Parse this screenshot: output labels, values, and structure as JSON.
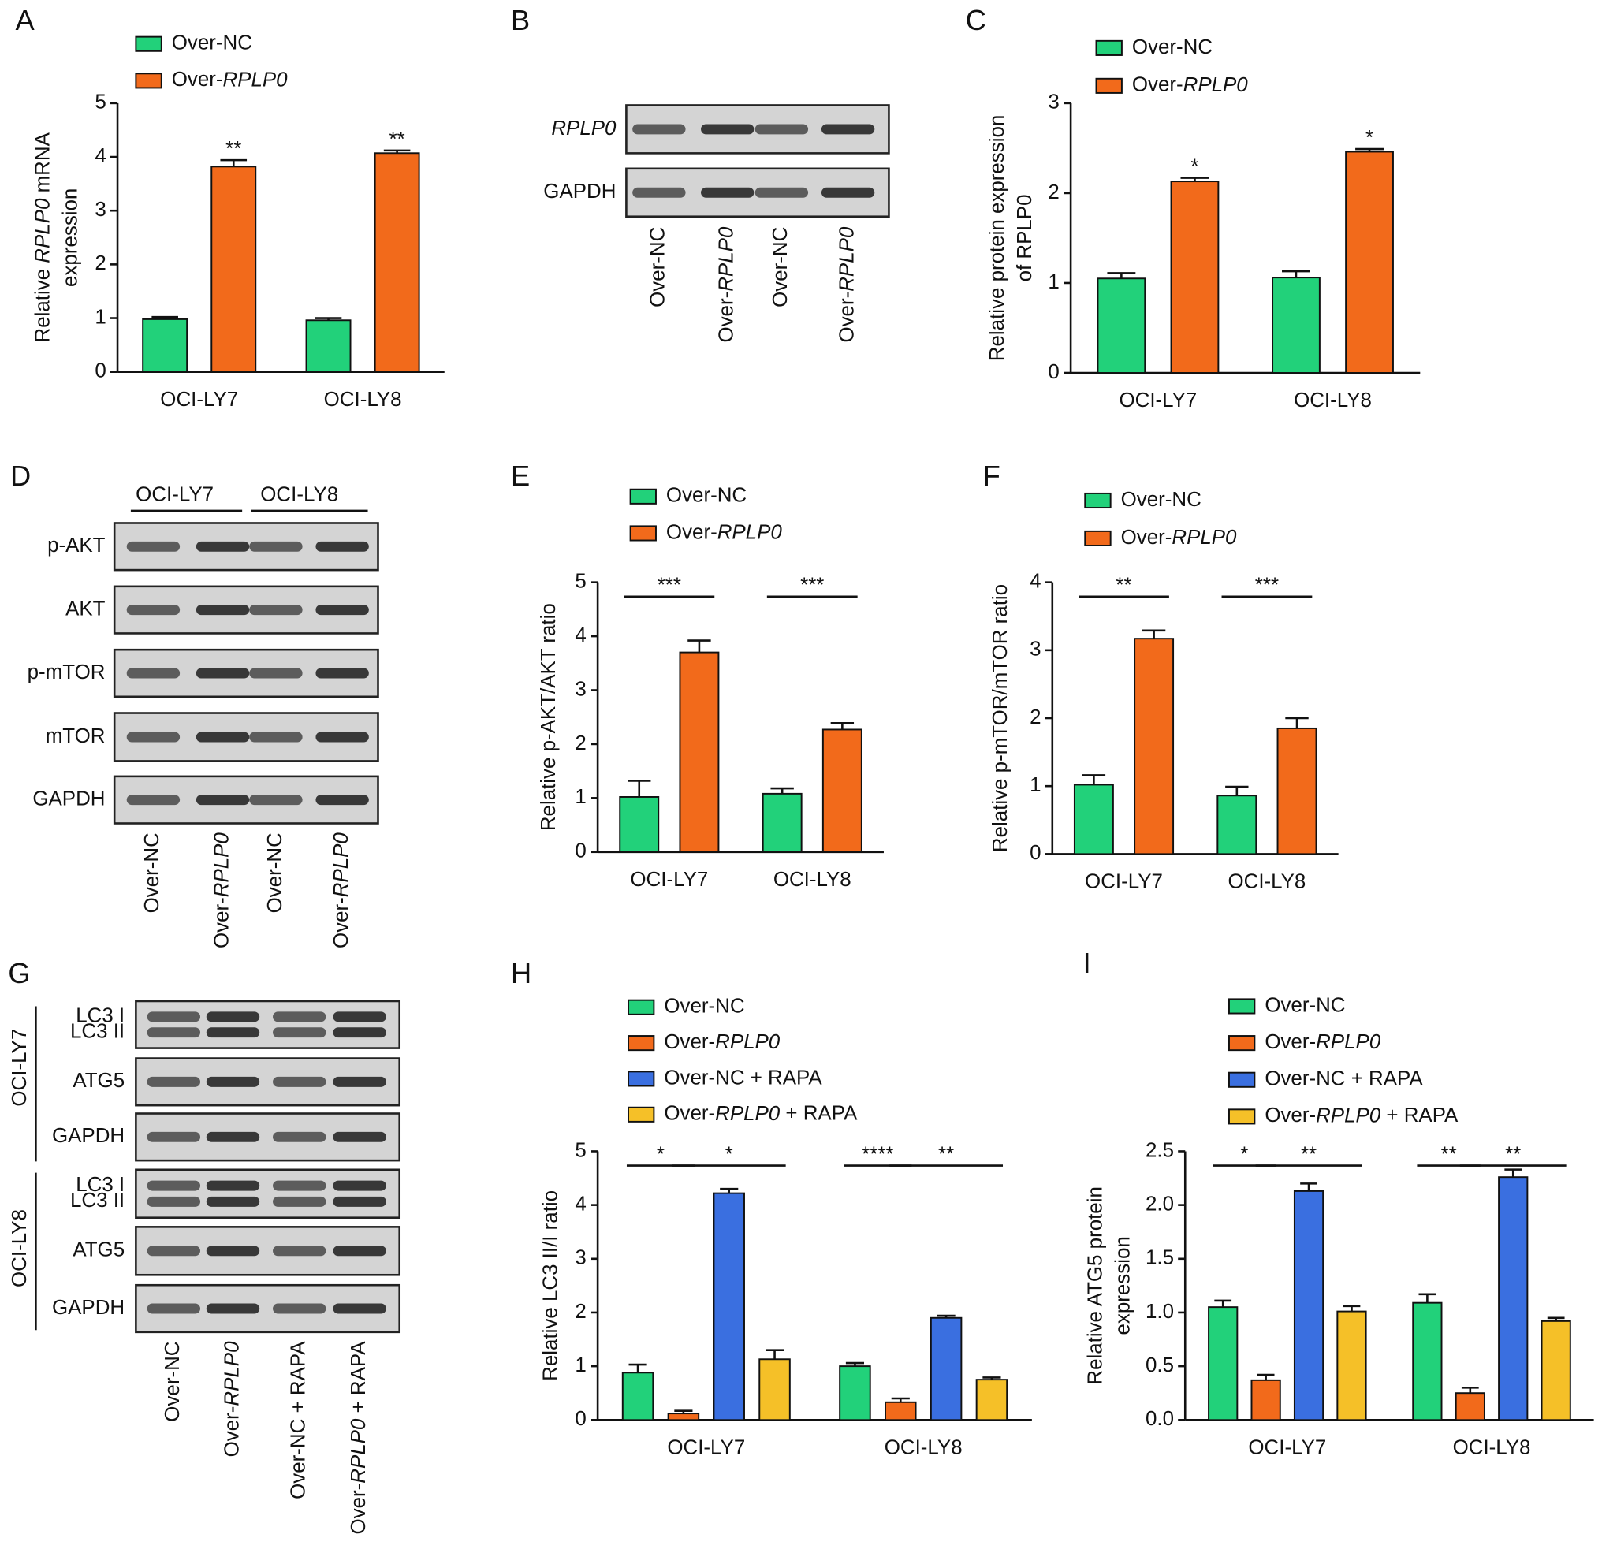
{
  "chart_data": [
    {
      "panel": "A",
      "type": "bar",
      "ylabel": [
        "Relative RPLP0 mRNA",
        "expression"
      ],
      "categories": [
        "OCI-LY7",
        "OCI-LY8"
      ],
      "series": [
        {
          "name": "Over-NC",
          "color": "#22d17a",
          "values": [
            0.98,
            0.96
          ],
          "errors": [
            0.04,
            0.04
          ]
        },
        {
          "name": "Over-RPLP0",
          "color": "#f26a1b",
          "values": [
            3.82,
            4.07
          ],
          "errors": [
            0.12,
            0.05
          ]
        }
      ],
      "ylim": [
        0,
        5
      ],
      "yticks": [
        0,
        1,
        2,
        3,
        4,
        5
      ],
      "significance": [
        {
          "label": "**",
          "category": 0,
          "series": [
            1
          ]
        },
        {
          "label": "**",
          "category": 1,
          "series": [
            1
          ]
        }
      ]
    },
    {
      "panel": "C",
      "type": "bar",
      "ylabel": [
        "Relative protein expression",
        "of RPLP0"
      ],
      "categories": [
        "OCI-LY7",
        "OCI-LY8"
      ],
      "series": [
        {
          "name": "Over-NC",
          "color": "#22d17a",
          "values": [
            1.05,
            1.06
          ],
          "errors": [
            0.06,
            0.07
          ]
        },
        {
          "name": "Over-RPLP0",
          "color": "#f26a1b",
          "values": [
            2.13,
            2.46
          ],
          "errors": [
            0.04,
            0.03
          ]
        }
      ],
      "ylim": [
        0,
        3
      ],
      "yticks": [
        0,
        1,
        2,
        3
      ],
      "significance": [
        {
          "label": "*",
          "category": 0,
          "series": [
            1
          ]
        },
        {
          "label": "*",
          "category": 1,
          "series": [
            1
          ]
        }
      ]
    },
    {
      "panel": "E",
      "type": "bar",
      "ylabel": [
        "Relative p-AKT/AKT ratio"
      ],
      "categories": [
        "OCI-LY7",
        "OCI-LY8"
      ],
      "series": [
        {
          "name": "Over-NC",
          "color": "#22d17a",
          "values": [
            1.02,
            1.08
          ],
          "errors": [
            0.3,
            0.1
          ]
        },
        {
          "name": "Over-RPLP0",
          "color": "#f26a1b",
          "values": [
            3.7,
            2.27
          ],
          "errors": [
            0.22,
            0.12
          ]
        }
      ],
      "ylim": [
        0,
        5
      ],
      "yticks": [
        0,
        1,
        2,
        3,
        4,
        5
      ],
      "significance": [
        {
          "label": "***",
          "category": 0,
          "series": [
            0,
            1
          ]
        },
        {
          "label": "***",
          "category": 1,
          "series": [
            0,
            1
          ]
        }
      ]
    },
    {
      "panel": "F",
      "type": "bar",
      "ylabel": [
        "Relative p-mTOR/mTOR ratio"
      ],
      "categories": [
        "OCI-LY7",
        "OCI-LY8"
      ],
      "series": [
        {
          "name": "Over-NC",
          "color": "#22d17a",
          "values": [
            1.02,
            0.86
          ],
          "errors": [
            0.14,
            0.13
          ]
        },
        {
          "name": "Over-RPLP0",
          "color": "#f26a1b",
          "values": [
            3.17,
            1.85
          ],
          "errors": [
            0.12,
            0.15
          ]
        }
      ],
      "ylim": [
        0,
        4
      ],
      "yticks": [
        0,
        1,
        2,
        3,
        4
      ],
      "significance": [
        {
          "label": "**",
          "category": 0,
          "series": [
            0,
            1
          ]
        },
        {
          "label": "***",
          "category": 1,
          "series": [
            0,
            1
          ]
        }
      ]
    },
    {
      "panel": "H",
      "type": "bar",
      "ylabel": [
        "Relative LC3 II/I ratio"
      ],
      "categories": [
        "OCI-LY7",
        "OCI-LY8"
      ],
      "series": [
        {
          "name": "Over-NC",
          "color": "#22d17a",
          "values": [
            0.88,
            1.0
          ],
          "errors": [
            0.15,
            0.06
          ]
        },
        {
          "name": "Over-RPLP0",
          "color": "#f26a1b",
          "values": [
            0.12,
            0.33
          ],
          "errors": [
            0.05,
            0.07
          ]
        },
        {
          "name": "Over-NC + RAPA",
          "color": "#3a6fe0",
          "values": [
            4.22,
            1.9
          ],
          "errors": [
            0.08,
            0.04
          ]
        },
        {
          "name": "Over-RPLP0 + RAPA",
          "color": "#f5c028",
          "values": [
            1.13,
            0.75
          ],
          "errors": [
            0.17,
            0.04
          ]
        }
      ],
      "ylim": [
        0,
        5
      ],
      "yticks": [
        0,
        1,
        2,
        3,
        4,
        5
      ],
      "significance": [
        {
          "label": "*",
          "category": 0,
          "series": [
            0,
            1
          ]
        },
        {
          "label": "*",
          "category": 0,
          "series": [
            1,
            3
          ]
        },
        {
          "label": "****",
          "category": 1,
          "series": [
            0,
            1
          ]
        },
        {
          "label": "**",
          "category": 1,
          "series": [
            1,
            3
          ]
        }
      ]
    },
    {
      "panel": "I",
      "type": "bar",
      "ylabel": [
        "Relative ATG5 protein",
        "expression"
      ],
      "categories": [
        "OCI-LY7",
        "OCI-LY8"
      ],
      "series": [
        {
          "name": "Over-NC",
          "color": "#22d17a",
          "values": [
            1.05,
            1.09
          ],
          "errors": [
            0.06,
            0.08
          ]
        },
        {
          "name": "Over-RPLP0",
          "color": "#f26a1b",
          "values": [
            0.37,
            0.25
          ],
          "errors": [
            0.05,
            0.05
          ]
        },
        {
          "name": "Over-NC + RAPA",
          "color": "#3a6fe0",
          "values": [
            2.13,
            2.26
          ],
          "errors": [
            0.07,
            0.07
          ]
        },
        {
          "name": "Over-RPLP0 + RAPA",
          "color": "#f5c028",
          "values": [
            1.01,
            0.92
          ],
          "errors": [
            0.05,
            0.03
          ]
        }
      ],
      "ylim": [
        0,
        2.5
      ],
      "yticks": [
        {
          "value": 0,
          "label": "0.0"
        },
        0.5,
        {
          "value": 1,
          "label": "1.0"
        },
        1.5,
        {
          "value": 2,
          "label": "2.0"
        },
        2.5
      ],
      "significance": [
        {
          "label": "*",
          "category": 0,
          "series": [
            0,
            1
          ]
        },
        {
          "label": "**",
          "category": 0,
          "series": [
            1,
            3
          ]
        },
        {
          "label": "**",
          "category": 1,
          "series": [
            0,
            1
          ]
        },
        {
          "label": "**",
          "category": 1,
          "series": [
            1,
            3
          ]
        }
      ]
    }
  ],
  "blots": [
    {
      "panel": "B",
      "sections": [
        {
          "rows": [
            [
              "RPLP0"
            ],
            [
              "GAPDH"
            ]
          ]
        }
      ],
      "lanes": [
        "Over-NC",
        "Over-RPLP0",
        "Over-NC",
        "Over-RPLP0"
      ]
    },
    {
      "panel": "D",
      "groups": [
        "OCI-LY7",
        "OCI-LY8"
      ],
      "sections": [
        {
          "rows": [
            [
              "p-AKT"
            ],
            [
              "AKT"
            ],
            [
              "p-mTOR"
            ],
            [
              "mTOR"
            ],
            [
              "GAPDH"
            ]
          ]
        }
      ],
      "lanes": [
        "Over-NC",
        "Over-RPLP0",
        "Over-NC",
        "Over-RPLP0"
      ]
    },
    {
      "panel": "G",
      "sections": [
        {
          "name": "OCI-LY7",
          "rows": [
            [
              "LC3 I",
              "LC3 II"
            ],
            [
              "ATG5"
            ],
            [
              "GAPDH"
            ]
          ]
        },
        {
          "name": "OCI-LY8",
          "rows": [
            [
              "LC3 I",
              "LC3 II"
            ],
            [
              "ATG5"
            ],
            [
              "GAPDH"
            ]
          ]
        }
      ],
      "lanes": [
        "Over-NC",
        "Over-RPLP0",
        "Over-NC + RAPA",
        "Over-RPLP0 + RAPA"
      ]
    }
  ]
}
